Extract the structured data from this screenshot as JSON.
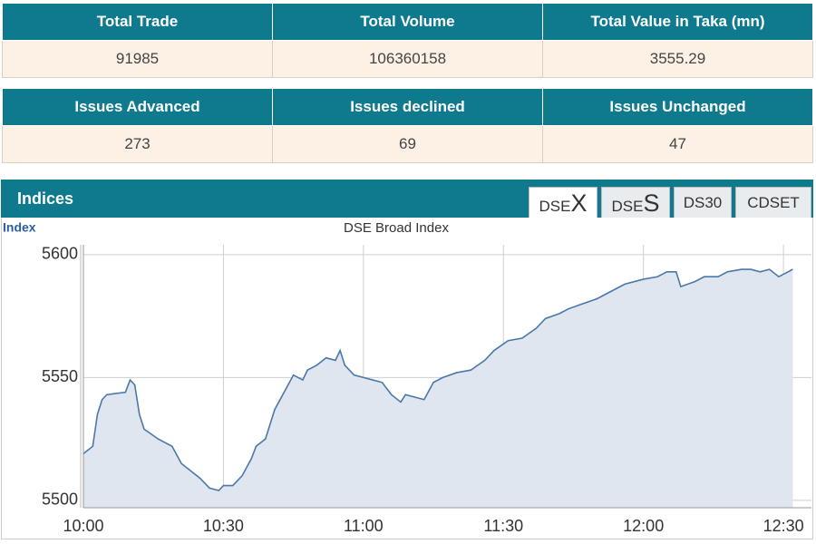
{
  "market_summary": {
    "headers": [
      "Total Trade",
      "Total Volume",
      "Total Value in Taka (mn)"
    ],
    "values": [
      91985,
      106360158,
      3555.29
    ]
  },
  "issues": {
    "headers": [
      "Issues Advanced",
      "Issues declined",
      "Issues Unchanged"
    ],
    "values": [
      273,
      69,
      47
    ]
  },
  "indices": {
    "title": "Indices",
    "tabs": [
      {
        "text": "DSE",
        "big": "X"
      },
      {
        "text": "DSE",
        "big": "S"
      },
      {
        "text": "DS30"
      },
      {
        "text": "CDSET"
      }
    ],
    "axis_label": "Index"
  },
  "chart_data": {
    "type": "area",
    "title": "DSE Broad Index",
    "color": "#4a78aa",
    "fill": "#dfe6ef",
    "grid": true,
    "x": [
      600,
      602,
      603,
      604,
      605,
      609,
      610,
      611,
      612,
      613,
      616,
      619,
      621,
      623,
      625,
      627,
      629,
      630,
      632,
      634,
      636,
      637,
      639,
      641,
      643,
      645,
      647,
      648,
      650,
      652,
      654,
      655,
      656,
      658,
      660,
      662,
      664,
      666,
      668,
      669,
      671,
      673,
      675,
      677,
      680,
      683,
      686,
      688,
      691,
      694,
      697,
      699,
      702,
      704,
      707,
      710,
      713,
      716,
      720,
      723,
      725,
      727,
      728,
      731,
      733,
      736,
      738,
      741,
      743,
      745,
      747,
      749,
      752
    ],
    "series": [
      {
        "name": "DSEX",
        "values": [
          5519,
          5522,
          5535,
          5541,
          5543,
          5544,
          5549,
          5547,
          5535,
          5529,
          5525,
          5522,
          5515,
          5512,
          5509,
          5505,
          5504,
          5506,
          5506,
          5510,
          5517,
          5522,
          5525,
          5537,
          5544,
          5551,
          5549,
          5553,
          5555,
          5558,
          5557,
          5561,
          5555,
          5551,
          5550,
          5549,
          5548,
          5543,
          5540,
          5543,
          5542,
          5541,
          5548,
          5550,
          5552,
          5553,
          5557,
          5561,
          5565,
          5566,
          5570,
          5574,
          5576,
          5578,
          5580,
          5582,
          5585,
          5588,
          5590,
          5591,
          5593,
          5593,
          5587,
          5589,
          5591,
          5591,
          5593,
          5594,
          5594,
          5593,
          5594,
          5591,
          5594
        ]
      }
    ],
    "xlim": [
      600,
      756
    ],
    "ylim": [
      5497,
      5604
    ],
    "xticks": [
      {
        "value": 600,
        "label": "10:00"
      },
      {
        "value": 630,
        "label": "10:30"
      },
      {
        "value": 660,
        "label": "11:00"
      },
      {
        "value": 690,
        "label": "11:30"
      },
      {
        "value": 720,
        "label": "12:00"
      },
      {
        "value": 750,
        "label": "12:30"
      }
    ],
    "yticks": [
      5500,
      5550,
      5600
    ]
  }
}
